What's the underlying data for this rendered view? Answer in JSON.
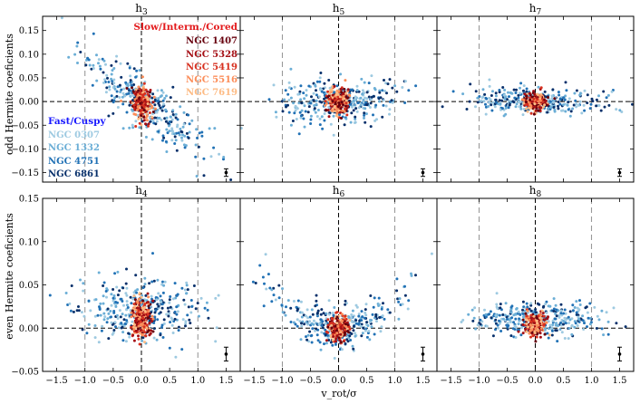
{
  "chart_data": {
    "type": "scatter",
    "xlabel": "v_rot/σ",
    "xlim": [
      -1.75,
      1.75
    ],
    "x_ticks": [
      -1.5,
      -1.0,
      -0.5,
      0.0,
      0.5,
      1.0,
      1.5
    ],
    "x_tick_labels": [
      "−1.5",
      "−1.0",
      "−0.5",
      "0.0",
      "0.5",
      "1.0",
      "1.5"
    ],
    "reference_lines": {
      "vertical_solid_dashed": 0.0,
      "vertical_grey_dashed": [
        -1.0,
        1.0
      ],
      "horizontal_dashed": 0.0
    },
    "rows": [
      {
        "ylabel": "odd Hermite coeficients",
        "ylim": [
          -0.17,
          0.18
        ],
        "y_ticks": [
          -0.15,
          -0.1,
          -0.05,
          0.0,
          0.05,
          0.1,
          0.15
        ],
        "y_tick_labels": [
          "−0.15",
          "−0.10",
          "−0.05",
          "0.00",
          "0.05",
          "0.10",
          "0.15"
        ],
        "panels": [
          {
            "title": "h3",
            "title_base": "h",
            "title_sub": "3",
            "trend": "anticorrelated",
            "spread": 0.028,
            "errorbar": {
              "x": 1.5,
              "y": -0.15,
              "err": 0.008
            }
          },
          {
            "title": "h5",
            "title_base": "h",
            "title_sub": "5",
            "trend": "wings",
            "spread": 0.022,
            "errorbar": {
              "x": 1.5,
              "y": -0.15,
              "err": 0.008
            }
          },
          {
            "title": "h7",
            "title_base": "h",
            "title_sub": "7",
            "trend": "flat",
            "spread": 0.015,
            "errorbar": {
              "x": 1.5,
              "y": -0.15,
              "err": 0.008
            }
          }
        ]
      },
      {
        "ylabel": "even Hermite coeficients",
        "ylim": [
          -0.05,
          0.15
        ],
        "y_ticks": [
          -0.05,
          0.0,
          0.05,
          0.1,
          0.15
        ],
        "y_tick_labels": [
          "−0.05",
          "0.00",
          "0.05",
          "0.10",
          "0.15"
        ],
        "panels": [
          {
            "title": "h4",
            "title_base": "h",
            "title_sub": "4",
            "trend": "flat_positive",
            "spread": 0.018,
            "errorbar": {
              "x": 1.5,
              "y": -0.03,
              "err": 0.008
            }
          },
          {
            "title": "h6",
            "title_base": "h",
            "title_sub": "6",
            "trend": "u_shape",
            "spread": 0.012,
            "errorbar": {
              "x": 1.5,
              "y": -0.03,
              "err": 0.008
            }
          },
          {
            "title": "h8",
            "title_base": "h",
            "title_sub": "8",
            "trend": "flat_small",
            "spread": 0.01,
            "errorbar": {
              "x": 1.5,
              "y": -0.03,
              "err": 0.008
            }
          }
        ]
      }
    ],
    "legend": {
      "slow": {
        "header": "Slow/Interm./Cored",
        "header_color": "#e31a1c",
        "entries": [
          {
            "name": "NGC 1407",
            "color": "#67000d"
          },
          {
            "name": "NGC 5328",
            "color": "#a50f15"
          },
          {
            "name": "NGC 5419",
            "color": "#d7301f"
          },
          {
            "name": "NGC 5516",
            "color": "#fc8d59"
          },
          {
            "name": "NGC 7619",
            "color": "#fdbb84"
          }
        ]
      },
      "fast": {
        "header": "Fast/Cuspy",
        "header_color": "#1a1aff",
        "entries": [
          {
            "name": "NGC 0307",
            "color": "#9ecae1"
          },
          {
            "name": "NGC 1332",
            "color": "#6baed6"
          },
          {
            "name": "NGC 4751",
            "color": "#2171b5"
          },
          {
            "name": "NGC 6861",
            "color": "#08306b"
          }
        ]
      }
    }
  }
}
